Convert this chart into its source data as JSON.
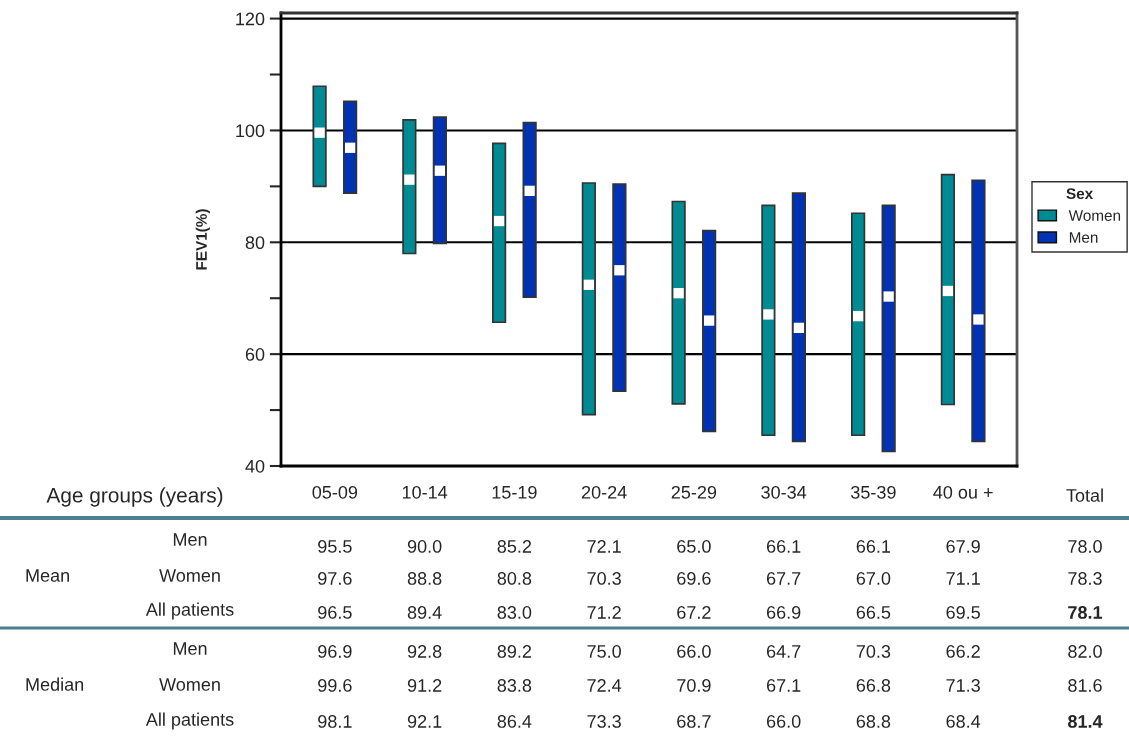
{
  "chart_data": {
    "type": "bar",
    "ylabel": "FEV1(%)",
    "legend_title": "Sex",
    "legend": "right",
    "grid": "y",
    "categories": [
      "05-09",
      "10-14",
      "15-19",
      "20-24",
      "25-29",
      "30-34",
      "35-39",
      "40 ou +"
    ],
    "ylim": [
      40,
      121
    ],
    "yticks": [
      40,
      {
        "value": 50,
        "label": null
      },
      60,
      {
        "value": 70,
        "label": null
      },
      80,
      {
        "value": 90,
        "label": null
      },
      100,
      {
        "value": 110,
        "label": null
      },
      120
    ],
    "series": [
      {
        "name": "Women",
        "color": "#008b94",
        "base": [
          90.0,
          78.0,
          65.7,
          49.2,
          51.1,
          45.5,
          45.5,
          51.0
        ],
        "values": [
          17.9,
          23.9,
          32.0,
          41.4,
          36.2,
          41.1,
          39.7,
          41.1
        ]
      },
      {
        "name": "Men",
        "color": "#0033b3",
        "base": [
          88.8,
          79.8,
          70.2,
          53.4,
          46.2,
          44.4,
          42.6,
          44.4
        ],
        "values": [
          16.4,
          22.6,
          31.2,
          37.0,
          35.9,
          44.4,
          44.0,
          46.7
        ]
      },
      {
        "type": "scatter",
        "color": "#ffffff",
        "marker": "square",
        "values": [
          99.6,
          91.2,
          83.8,
          72.4,
          70.9,
          67.1,
          66.8,
          71.3
        ]
      },
      {
        "type": "scatter",
        "color": "#ffffff",
        "marker": "square",
        "values": [
          96.9,
          92.8,
          89.2,
          75.0,
          66.0,
          64.7,
          70.3,
          66.2
        ]
      }
    ],
    "annotations": [
      "Age groups (years)",
      "Total",
      "Mean",
      "Median",
      "Men",
      "95.5",
      "90.0",
      "85.2",
      "72.1",
      "65.0",
      "66.1",
      "66.1",
      "67.9",
      "78.0",
      "Women",
      "97.6",
      "88.8",
      "80.8",
      "70.3",
      "69.6",
      "67.7",
      "67.0",
      "71.1",
      "78.3",
      "All patients",
      "96.5",
      "89.4",
      "83.0",
      "71.2",
      "67.2",
      "66.9",
      "66.5",
      "69.5",
      "78.1",
      "Men",
      "96.9",
      "92.8",
      "89.2",
      "75.0",
      "66.0",
      "64.7",
      "70.3",
      "66.2",
      "82.0",
      "Women",
      "99.6",
      "91.2",
      "83.8",
      "72.4",
      "70.9",
      "67.1",
      "66.8",
      "71.3",
      "81.6",
      "All patients",
      "98.1",
      "92.1",
      "86.4",
      "73.3",
      "68.7",
      "66.0",
      "68.8",
      "68.4",
      "81.4"
    ]
  }
}
